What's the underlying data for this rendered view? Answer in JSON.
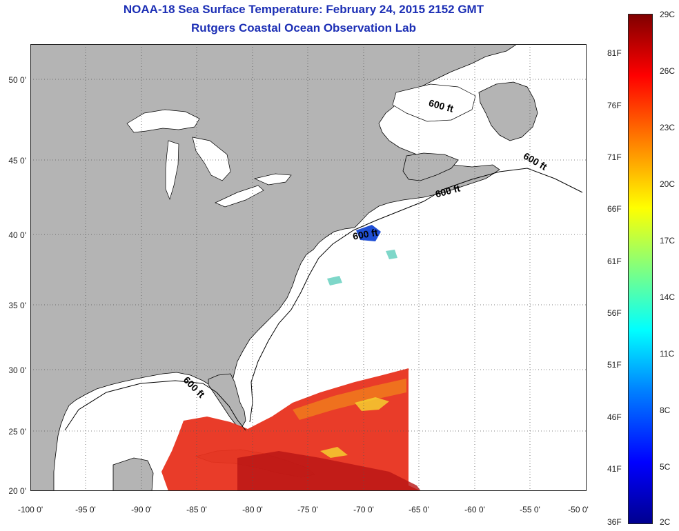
{
  "title": "NOAA-18 Sea Surface Temperature:  February 24, 2015 2152 GMT",
  "subtitle": "Rutgers Coastal Ocean Observation Lab",
  "y_axis_labels": [
    "50 0'",
    "45 0'",
    "40 0'",
    "35 0'",
    "30 0'",
    "25 0'",
    "20 0'"
  ],
  "x_axis_labels": [
    "-100 0'",
    "-95 0'",
    "-90 0'",
    "-85 0'",
    "-80 0'",
    "-75 0'",
    "-70 0'",
    "-65 0'",
    "-60 0'",
    "-55 0'",
    "-50 0'"
  ],
  "contour_label": "600 ft",
  "colorbar": {
    "fahrenheit": [
      "81F",
      "76F",
      "71F",
      "66F",
      "61F",
      "56F",
      "51F",
      "46F",
      "41F",
      "36F"
    ],
    "celsius": [
      "29C",
      "26C",
      "23C",
      "20C",
      "17C",
      "14C",
      "11C",
      "8C",
      "5C",
      "2C"
    ]
  },
  "colors": {
    "land": "#b4b4b4",
    "water": "#ffffff",
    "title": "#1c2fb5",
    "gridlines": "#555555"
  }
}
